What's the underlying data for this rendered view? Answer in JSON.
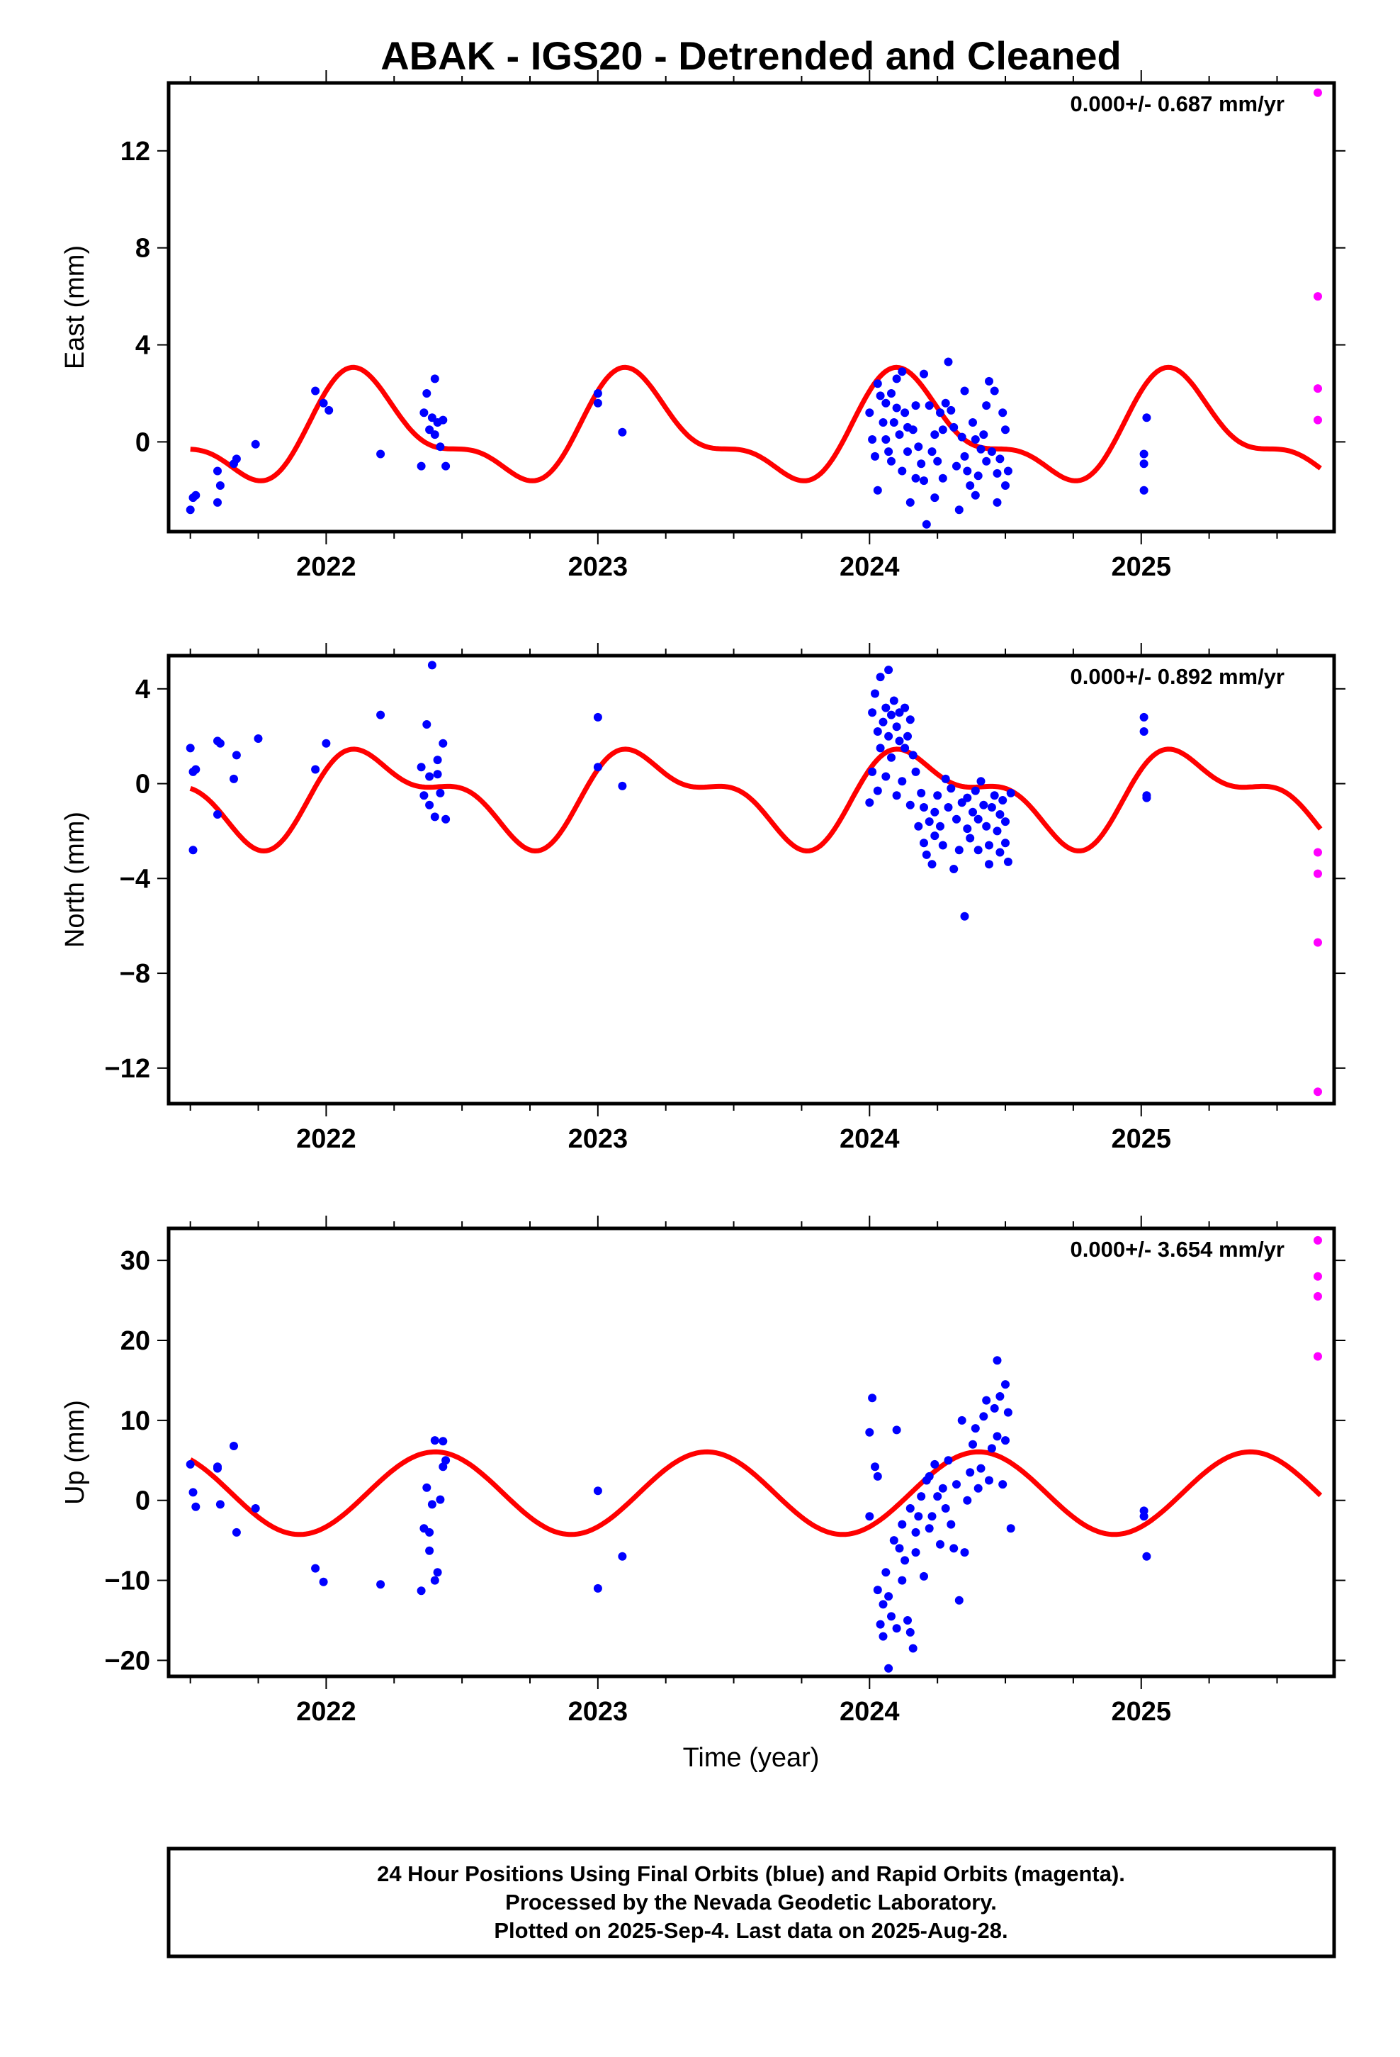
{
  "title": "ABAK - IGS20 - Detrended and Cleaned",
  "xlabel": "Time (year)",
  "footer": {
    "line1": "24 Hour Positions Using Final Orbits (blue) and Rapid Orbits (magenta).",
    "line2": "Processed by the Nevada Geodetic Laboratory.",
    "line3": "Plotted on 2025-Sep-4. Last data on 2025-Aug-28."
  },
  "colors": {
    "final": "#0000ff",
    "rapid": "#ff00ff",
    "model": "#ff0000",
    "frame": "#000000"
  },
  "chart_data": [
    {
      "type": "scatter",
      "component": "east",
      "ylabel": "East (mm)",
      "rate_text": "0.000+/- 0.687 mm/yr",
      "xlim": [
        2021.42,
        2025.71
      ],
      "ylim": [
        -3.7,
        14.8
      ],
      "xticks": [
        2022,
        2023,
        2024,
        2025
      ],
      "yticks": [
        0,
        4,
        8,
        12
      ],
      "series": [
        {
          "name": "Final Orbits",
          "x": [
            2021.5,
            2021.51,
            2021.52,
            2021.6,
            2021.61,
            2021.6,
            2021.66,
            2021.67,
            2021.74,
            2021.96,
            2021.99,
            2022.01,
            2022.2,
            2022.35,
            2022.36,
            2022.37,
            2022.38,
            2022.39,
            2022.4,
            2022.4,
            2022.41,
            2022.42,
            2022.43,
            2022.44,
            2023.0,
            2023.0,
            2023.09,
            2024.0,
            2024.01,
            2024.02,
            2024.03,
            2024.03,
            2024.04,
            2024.05,
            2024.06,
            2024.06,
            2024.07,
            2024.08,
            2024.08,
            2024.09,
            2024.1,
            2024.1,
            2024.11,
            2024.12,
            2024.12,
            2024.13,
            2024.14,
            2024.14,
            2024.15,
            2024.16,
            2024.17,
            2024.17,
            2024.18,
            2024.19,
            2024.2,
            2024.2,
            2024.21,
            2024.22,
            2024.23,
            2024.24,
            2024.24,
            2024.25,
            2024.26,
            2024.27,
            2024.27,
            2024.28,
            2024.29,
            2024.3,
            2024.31,
            2024.32,
            2024.33,
            2024.34,
            2024.35,
            2024.35,
            2024.36,
            2024.37,
            2024.38,
            2024.39,
            2024.39,
            2024.4,
            2024.41,
            2024.42,
            2024.43,
            2024.43,
            2024.44,
            2024.45,
            2024.46,
            2024.47,
            2024.47,
            2024.48,
            2024.49,
            2024.5,
            2024.5,
            2024.51,
            2025.01,
            2025.01,
            2025.02,
            2025.01
          ],
          "y": [
            -2.8,
            -2.3,
            -2.2,
            -1.2,
            -1.8,
            -2.5,
            -0.9,
            -0.7,
            -0.1,
            2.1,
            1.6,
            1.3,
            -0.5,
            -1.0,
            1.2,
            2.0,
            0.5,
            1.0,
            2.6,
            0.3,
            0.8,
            -0.2,
            0.9,
            -1.0,
            2.0,
            1.6,
            0.4,
            1.2,
            0.1,
            -0.6,
            2.4,
            -2.0,
            1.9,
            0.8,
            0.1,
            1.6,
            -0.4,
            2.0,
            -0.8,
            0.8,
            2.6,
            1.4,
            0.3,
            2.9,
            -1.2,
            1.2,
            -0.4,
            0.6,
            -2.5,
            0.5,
            1.5,
            -1.5,
            -0.2,
            -0.9,
            -1.6,
            2.8,
            -3.4,
            1.5,
            -0.4,
            0.3,
            -2.3,
            -0.8,
            1.2,
            0.5,
            -1.5,
            1.6,
            3.3,
            1.3,
            0.6,
            -1.0,
            -2.8,
            0.2,
            2.1,
            -0.6,
            -1.2,
            -1.8,
            0.8,
            0.1,
            -2.2,
            -1.4,
            -0.3,
            0.3,
            1.5,
            -0.8,
            2.5,
            -0.4,
            2.1,
            -1.3,
            -2.5,
            -0.7,
            1.2,
            -1.8,
            0.5,
            -1.2,
            -2.0,
            -0.9,
            1.0,
            -0.5
          ],
          "color": "#0000ff"
        },
        {
          "name": "Rapid Orbits",
          "x": [
            2025.65,
            2025.65,
            2025.65,
            2025.65
          ],
          "y": [
            14.4,
            6.0,
            2.2,
            0.9
          ],
          "color": "#ff00ff"
        },
        {
          "name": "Model",
          "fit": {
            "a1": 1.5,
            "b1": 1.2,
            "a2": 0.7,
            "b2": 0.5,
            "offset": 0.4
          },
          "color": "#ff0000"
        }
      ]
    },
    {
      "type": "scatter",
      "component": "north",
      "ylabel": "North (mm)",
      "rate_text": "0.000+/- 0.892 mm/yr",
      "xlim": [
        2021.42,
        2025.71
      ],
      "ylim": [
        -13.5,
        5.4
      ],
      "xticks": [
        2022,
        2023,
        2024,
        2025
      ],
      "yticks": [
        4,
        0,
        -4,
        -8,
        -12
      ],
      "series": [
        {
          "name": "Final Orbits",
          "x": [
            2021.5,
            2021.51,
            2021.52,
            2021.51,
            2021.6,
            2021.61,
            2021.6,
            2021.66,
            2021.67,
            2021.75,
            2021.96,
            2022.0,
            2022.2,
            2022.35,
            2022.36,
            2022.37,
            2022.38,
            2022.38,
            2022.39,
            2022.4,
            2022.41,
            2022.41,
            2022.42,
            2022.43,
            2022.44,
            2023.0,
            2023.0,
            2023.09,
            2024.0,
            2024.01,
            2024.01,
            2024.02,
            2024.03,
            2024.03,
            2024.04,
            2024.04,
            2024.05,
            2024.06,
            2024.06,
            2024.07,
            2024.07,
            2024.08,
            2024.08,
            2024.09,
            2024.1,
            2024.1,
            2024.11,
            2024.11,
            2024.12,
            2024.13,
            2024.13,
            2024.14,
            2024.15,
            2024.15,
            2024.16,
            2024.17,
            2024.18,
            2024.19,
            2024.2,
            2024.2,
            2024.21,
            2024.22,
            2024.23,
            2024.24,
            2024.24,
            2024.25,
            2024.26,
            2024.27,
            2024.28,
            2024.29,
            2024.3,
            2024.31,
            2024.32,
            2024.33,
            2024.34,
            2024.35,
            2024.36,
            2024.36,
            2024.37,
            2024.38,
            2024.39,
            2024.4,
            2024.4,
            2024.41,
            2024.42,
            2024.43,
            2024.44,
            2024.44,
            2024.45,
            2024.46,
            2024.47,
            2024.48,
            2024.48,
            2024.49,
            2024.5,
            2024.5,
            2024.51,
            2024.52,
            2025.01,
            2025.01,
            2025.02,
            2025.02
          ],
          "y": [
            1.5,
            0.5,
            0.6,
            -2.8,
            1.8,
            1.7,
            -1.3,
            0.2,
            1.2,
            1.9,
            0.6,
            1.7,
            2.9,
            0.7,
            -0.5,
            2.5,
            -0.9,
            0.3,
            5.0,
            -1.4,
            1.0,
            0.4,
            -0.4,
            1.7,
            -1.5,
            2.8,
            0.7,
            -0.1,
            -0.8,
            3.0,
            0.5,
            3.8,
            2.2,
            -0.3,
            4.5,
            1.5,
            2.6,
            3.2,
            0.3,
            4.8,
            2.0,
            2.9,
            1.1,
            3.5,
            -0.5,
            2.4,
            1.8,
            3.0,
            0.1,
            1.5,
            3.2,
            2.0,
            -0.9,
            2.7,
            1.2,
            0.5,
            -1.8,
            -0.4,
            -2.5,
            -1.0,
            -3.0,
            -1.6,
            -3.4,
            -1.2,
            -2.2,
            -0.5,
            -1.8,
            -2.6,
            0.2,
            -1.0,
            -0.2,
            -3.6,
            -1.5,
            -2.8,
            -0.8,
            -5.6,
            -1.9,
            -0.6,
            -2.3,
            -1.2,
            -0.3,
            -2.8,
            -1.5,
            0.1,
            -0.9,
            -1.8,
            -2.6,
            -3.4,
            -1.0,
            -0.5,
            -2.0,
            -1.3,
            -2.9,
            -0.7,
            -1.6,
            -2.5,
            -3.3,
            -0.4,
            2.8,
            2.2,
            -0.5,
            -0.6
          ],
          "color": "#0000ff"
        },
        {
          "name": "Rapid Orbits",
          "x": [
            2025.65,
            2025.65,
            2025.65,
            2025.65
          ],
          "y": [
            -2.9,
            -3.8,
            -6.7,
            -13.0
          ],
          "color": "#ff00ff"
        },
        {
          "name": "Model",
          "fit": {
            "a1": 1.6,
            "b1": 0.4,
            "a2": 0.5,
            "b2": 0.7,
            "offset": -0.5
          },
          "color": "#ff0000"
        }
      ]
    },
    {
      "type": "scatter",
      "component": "up",
      "ylabel": "Up (mm)",
      "rate_text": "0.000+/- 3.654 mm/yr",
      "xlim": [
        2021.42,
        2025.71
      ],
      "ylim": [
        -22,
        34
      ],
      "xticks": [
        2022,
        2023,
        2024,
        2025
      ],
      "yticks": [
        30,
        20,
        10,
        0,
        -10,
        -20
      ],
      "series": [
        {
          "name": "Final Orbits",
          "x": [
            2021.5,
            2021.51,
            2021.52,
            2021.6,
            2021.61,
            2021.6,
            2021.66,
            2021.67,
            2021.74,
            2021.96,
            2021.99,
            2022.2,
            2022.35,
            2022.36,
            2022.37,
            2022.38,
            2022.38,
            2022.39,
            2022.4,
            2022.4,
            2022.41,
            2022.42,
            2022.43,
            2022.43,
            2022.44,
            2023.0,
            2023.0,
            2023.09,
            2024.0,
            2024.0,
            2024.01,
            2024.02,
            2024.03,
            2024.03,
            2024.04,
            2024.05,
            2024.05,
            2024.06,
            2024.07,
            2024.07,
            2024.08,
            2024.09,
            2024.1,
            2024.1,
            2024.11,
            2024.12,
            2024.12,
            2024.13,
            2024.14,
            2024.15,
            2024.15,
            2024.16,
            2024.17,
            2024.17,
            2024.18,
            2024.19,
            2024.2,
            2024.21,
            2024.22,
            2024.22,
            2024.23,
            2024.24,
            2024.25,
            2024.26,
            2024.27,
            2024.28,
            2024.29,
            2024.3,
            2024.31,
            2024.32,
            2024.33,
            2024.34,
            2024.35,
            2024.36,
            2024.37,
            2024.38,
            2024.39,
            2024.4,
            2024.41,
            2024.42,
            2024.43,
            2024.44,
            2024.45,
            2024.46,
            2024.47,
            2024.47,
            2024.48,
            2024.49,
            2024.5,
            2024.5,
            2024.51,
            2024.52,
            2025.01,
            2025.01,
            2025.02
          ],
          "y": [
            4.5,
            1.0,
            -0.8,
            4.0,
            -0.5,
            4.2,
            6.8,
            -4.0,
            -1.0,
            -8.5,
            -10.2,
            -10.5,
            -11.3,
            -3.5,
            1.6,
            -6.3,
            -4.0,
            -0.5,
            7.5,
            -10.0,
            -9.0,
            0.1,
            7.4,
            4.2,
            5.0,
            1.2,
            -11.0,
            -7.0,
            8.5,
            -2.0,
            12.8,
            4.2,
            -11.2,
            3.0,
            -15.5,
            -17.0,
            -13.0,
            -9.0,
            -21.0,
            -12.0,
            -14.5,
            -5.0,
            8.8,
            -16.0,
            -6.0,
            -3.0,
            -10.0,
            -7.5,
            -15.0,
            -16.5,
            -1.0,
            -18.5,
            -4.0,
            -6.5,
            -2.0,
            0.5,
            -9.5,
            2.5,
            -3.5,
            3.0,
            -2.0,
            4.5,
            0.5,
            -5.5,
            1.5,
            -1.0,
            5.0,
            -3.0,
            -6.0,
            2.0,
            -12.5,
            10.0,
            -6.5,
            0.0,
            3.5,
            7.0,
            9.0,
            1.5,
            4.0,
            10.5,
            12.5,
            2.5,
            6.5,
            11.5,
            8.0,
            17.5,
            13.0,
            2.0,
            14.5,
            7.5,
            11.0,
            -3.5,
            -1.3,
            -2.0,
            -7.0
          ],
          "color": "#0000ff"
        },
        {
          "name": "Rapid Orbits",
          "x": [
            2025.65,
            2025.65,
            2025.65,
            2025.65
          ],
          "y": [
            32.5,
            28.0,
            25.5,
            18.0
          ],
          "color": "#ff00ff"
        },
        {
          "name": "Model",
          "fit": {
            "a1": 3.0,
            "b1": -4.2,
            "a2": 0.0,
            "b2": 0.0,
            "offset": 0.9
          },
          "color": "#ff0000"
        }
      ]
    }
  ]
}
